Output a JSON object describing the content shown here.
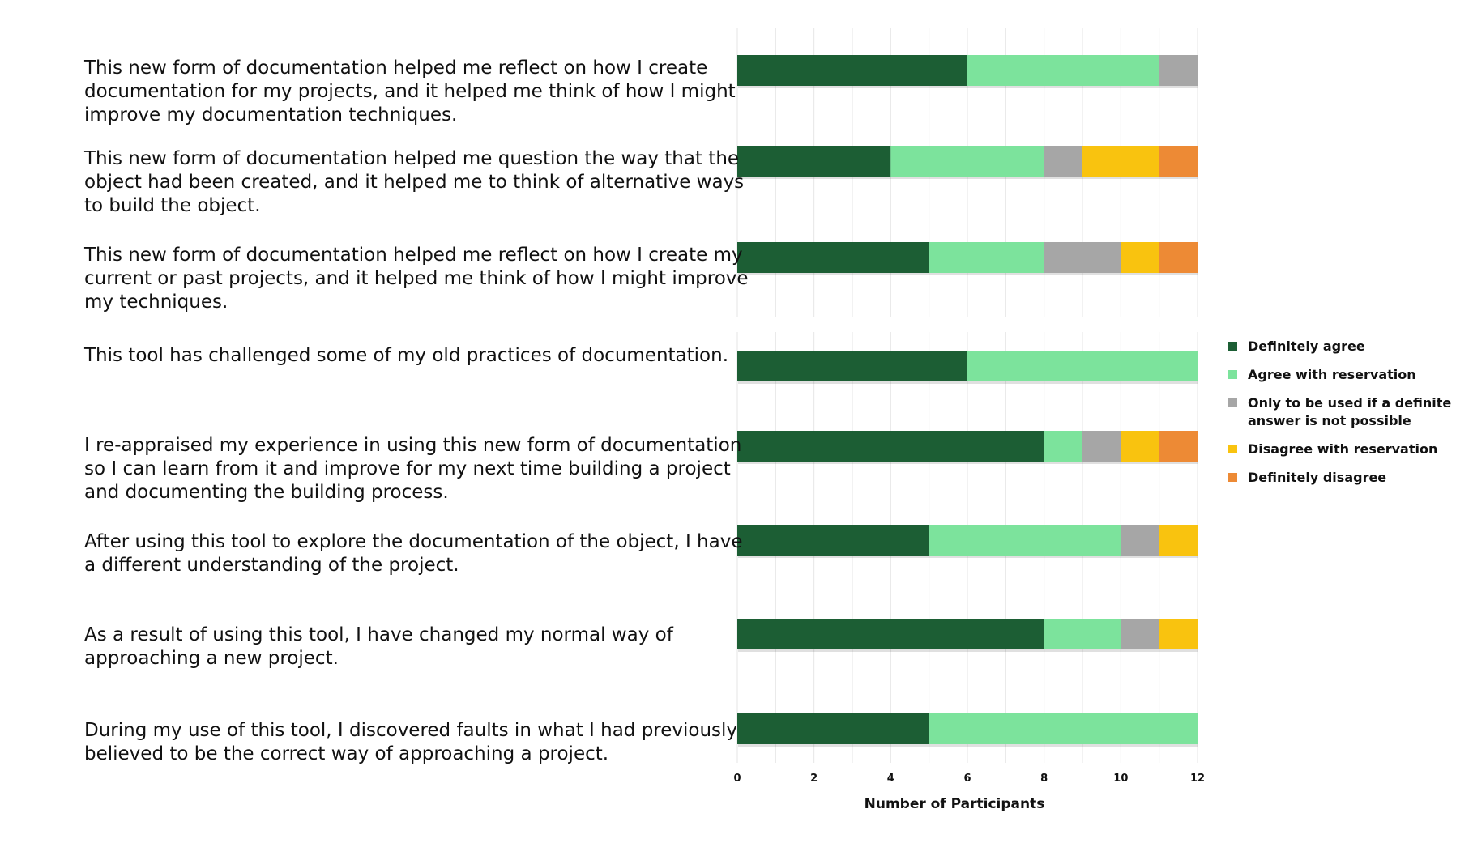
{
  "chart_data": {
    "type": "bar",
    "orientation": "horizontal",
    "stacked": true,
    "xlabel": "Number of Participants",
    "xlim": [
      0,
      12
    ],
    "xticks": [
      "0",
      "2",
      "4",
      "6",
      "8",
      "10",
      "12"
    ],
    "grid": true,
    "legend_position": "right",
    "categories": [
      [
        "This new form of documentation helped me reflect on how I create",
        "documentation for my projects, and it helped me think of how I might",
        "improve my documentation techniques."
      ],
      [
        "This new form of documentation helped me question the way that the",
        "object had been created, and it helped me to think of alternative ways",
        "to build the object."
      ],
      [
        "This new form of documentation helped me reflect on how I create my",
        "current or past projects, and it helped me think of how I might improve",
        "my techniques."
      ],
      [
        "This tool has challenged some of my old practices of documentation."
      ],
      [
        "I re-appraised my experience in using this new form of documentation",
        "so I can learn from it and improve for my next time building a project",
        "and documenting the building process."
      ],
      [
        "After using this tool to explore the documentation of the object, I have",
        "a different understanding of the project."
      ],
      [
        "As a result of using this tool, I have changed my normal way of",
        "approaching a new project."
      ],
      [
        "During my use of this tool, I discovered faults in what I had previously",
        "believed to be the correct way of approaching a project."
      ]
    ],
    "series": [
      {
        "name": "Definitely agree",
        "color": "#1c5e34",
        "values": [
          6,
          4,
          5,
          6,
          8,
          5,
          8,
          5
        ]
      },
      {
        "name": "Agree with reservation",
        "color": "#7ce39c",
        "values": [
          5,
          4,
          3,
          6,
          1,
          5,
          2,
          7
        ]
      },
      {
        "name": "Only to be used if a definite answer is not possible",
        "legend_lines": [
          "Only to be used if a definite",
          "answer is not possible"
        ],
        "color": "#a6a6a6",
        "values": [
          1,
          1,
          2,
          0,
          1,
          1,
          1,
          0
        ]
      },
      {
        "name": "Disagree with reservation",
        "color": "#f9c30f",
        "values": [
          0,
          2,
          1,
          0,
          1,
          1,
          1,
          0
        ]
      },
      {
        "name": "Definitely disagree",
        "color": "#ed8a35",
        "values": [
          0,
          1,
          1,
          0,
          1,
          0,
          0,
          0
        ]
      }
    ]
  }
}
